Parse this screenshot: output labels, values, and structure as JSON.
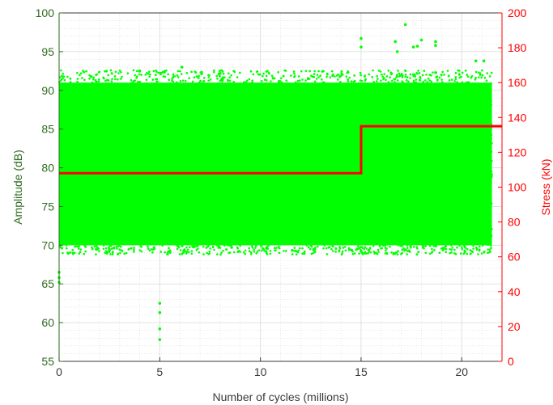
{
  "colors": {
    "amplitude": "#00ff00",
    "stress": "#ff0000",
    "left_axis": "#2e6b1f",
    "right_axis": "#ff0000",
    "x_axis": "#3a3a3a",
    "grid": "#d9d9d9"
  },
  "chart_data": {
    "type": "scatter",
    "title": "",
    "xlabel": "Number of cycles (millions)",
    "ylabel": "Amplitude (dB)",
    "y2label": "Stress (kN)",
    "xlim": [
      0,
      22
    ],
    "ylim": [
      55,
      100
    ],
    "y2lim": [
      0,
      200
    ],
    "xticks": [
      "0",
      "5",
      "10",
      "15",
      "20"
    ],
    "yticks": [
      "55",
      "60",
      "65",
      "70",
      "75",
      "80",
      "85",
      "90",
      "95",
      "100"
    ],
    "y2ticks": [
      "0",
      "20",
      "40",
      "60",
      "80",
      "100",
      "120",
      "140",
      "160",
      "180",
      "200"
    ],
    "grid": "major and minor",
    "series": [
      {
        "axis": "left",
        "style": "dense scatter band",
        "band": {
          "x": [
            0,
            21.5
          ],
          "y": [
            70,
            91
          ]
        },
        "outliers": [
          {
            "x": 0.0,
            "y": 66.5
          },
          {
            "x": 0.0,
            "y": 65.8
          },
          {
            "x": 0.0,
            "y": 65.2
          },
          {
            "x": 5.0,
            "y": 62.5
          },
          {
            "x": 5.0,
            "y": 61.3
          },
          {
            "x": 5.0,
            "y": 59.2
          },
          {
            "x": 5.0,
            "y": 57.8
          },
          {
            "x": 6.1,
            "y": 93.0
          },
          {
            "x": 15.0,
            "y": 96.7
          },
          {
            "x": 15.0,
            "y": 95.6
          },
          {
            "x": 16.7,
            "y": 96.3
          },
          {
            "x": 16.8,
            "y": 95.0
          },
          {
            "x": 17.2,
            "y": 98.5
          },
          {
            "x": 17.6,
            "y": 95.6
          },
          {
            "x": 17.8,
            "y": 95.7
          },
          {
            "x": 18.0,
            "y": 96.5
          },
          {
            "x": 18.7,
            "y": 96.3
          },
          {
            "x": 18.7,
            "y": 95.8
          },
          {
            "x": 20.7,
            "y": 93.8
          },
          {
            "x": 21.1,
            "y": 93.8
          },
          {
            "x": 8.0,
            "y": 92.2
          },
          {
            "x": 4.0,
            "y": 92.5
          }
        ]
      },
      {
        "axis": "right",
        "type": "line",
        "x": [
          0,
          15.0,
          15.0,
          22
        ],
        "y": [
          108,
          108,
          135,
          135
        ]
      }
    ]
  }
}
